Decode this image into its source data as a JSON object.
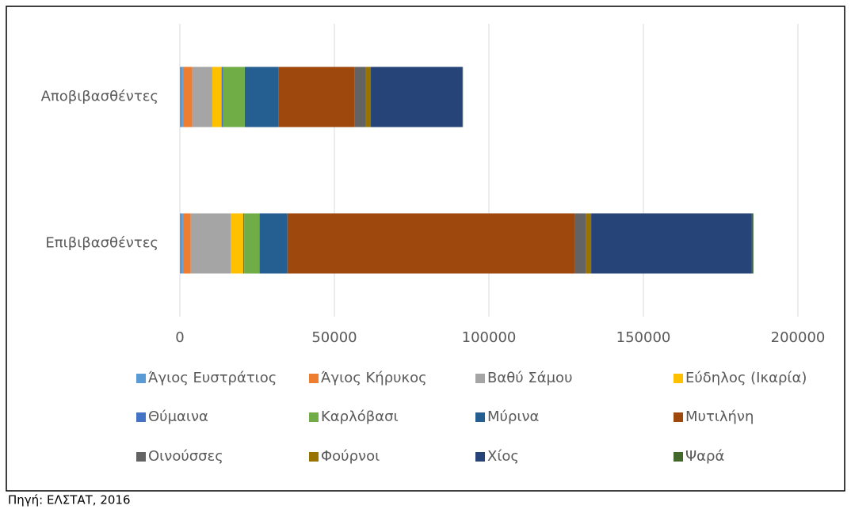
{
  "chart_data": {
    "type": "stacked-barh",
    "categories": [
      "Αποβιβασθέντες",
      "Επιβιβασθέντες"
    ],
    "series": [
      {
        "name": "Άγιος Ευστράτιος",
        "color": "#5b9bd5",
        "values": [
          1000,
          1000
        ]
      },
      {
        "name": "Άγιος Κήρυκος",
        "color": "#ed7d31",
        "values": [
          3000,
          2500
        ]
      },
      {
        "name": "Βαθύ Σάμου",
        "color": "#a5a5a5",
        "values": [
          6500,
          13000
        ]
      },
      {
        "name": "Εύδηλος (Ικαρία)",
        "color": "#ffc000",
        "values": [
          3000,
          4000
        ]
      },
      {
        "name": "Θύμαινα",
        "color": "#4472c4",
        "values": [
          500,
          300
        ]
      },
      {
        "name": "Καρλόβασι",
        "color": "#70ad47",
        "values": [
          7000,
          5000
        ]
      },
      {
        "name": "Μύρινα",
        "color": "#255e91",
        "values": [
          11000,
          9000
        ]
      },
      {
        "name": "Μυτιλήνη",
        "color": "#9e480e",
        "values": [
          24500,
          93000
        ]
      },
      {
        "name": "Οινούσσες",
        "color": "#636363",
        "values": [
          3500,
          3500
        ]
      },
      {
        "name": "Φούρνοι",
        "color": "#997300",
        "values": [
          1800,
          1800
        ]
      },
      {
        "name": "Χίος",
        "color": "#264478",
        "values": [
          29500,
          52000
        ]
      },
      {
        "name": "Ψαρά",
        "color": "#43682b",
        "values": [
          300,
          500
        ]
      }
    ],
    "xlim": [
      0,
      200000
    ],
    "xticks": [
      0,
      50000,
      100000,
      150000,
      200000
    ],
    "grid": true,
    "legend": "bottom",
    "source": "Πηγή: ΕΛΣΤΑΤ, 2016"
  }
}
